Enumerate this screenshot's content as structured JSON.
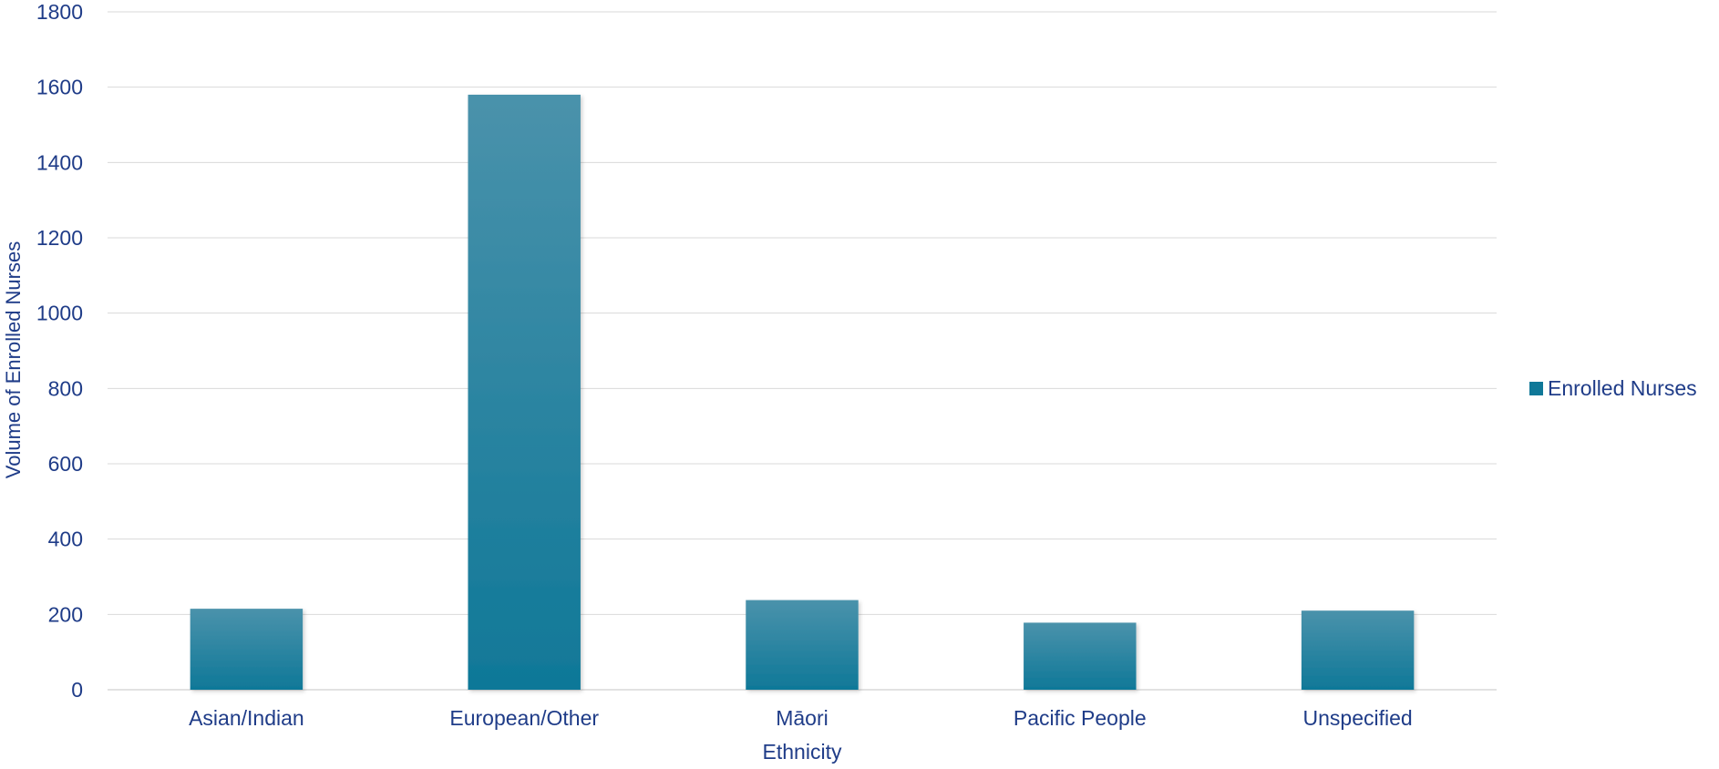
{
  "chart_data": {
    "type": "bar",
    "title": "",
    "xlabel": "Ethnicity",
    "ylabel": "Volume of Enrolled Nurses",
    "categories": [
      "Asian/Indian",
      "European/Other",
      "Māori",
      "Pacific People",
      "Unspecified"
    ],
    "series": [
      {
        "name": "Enrolled Nurses",
        "values": [
          215,
          1580,
          238,
          178,
          210
        ]
      }
    ],
    "ylim": [
      0,
      1800
    ],
    "yticks": [
      "0",
      "200",
      "400",
      "600",
      "800",
      "1000",
      "1200",
      "1400",
      "1600",
      "1800"
    ],
    "grid": true,
    "legend_position": "right",
    "colors": {
      "bar_top": "#4a92ab",
      "bar_bottom": "#0f7898",
      "text": "#1f3c88",
      "grid": "#d9d9d9",
      "axis": "#d9d9d9"
    }
  }
}
